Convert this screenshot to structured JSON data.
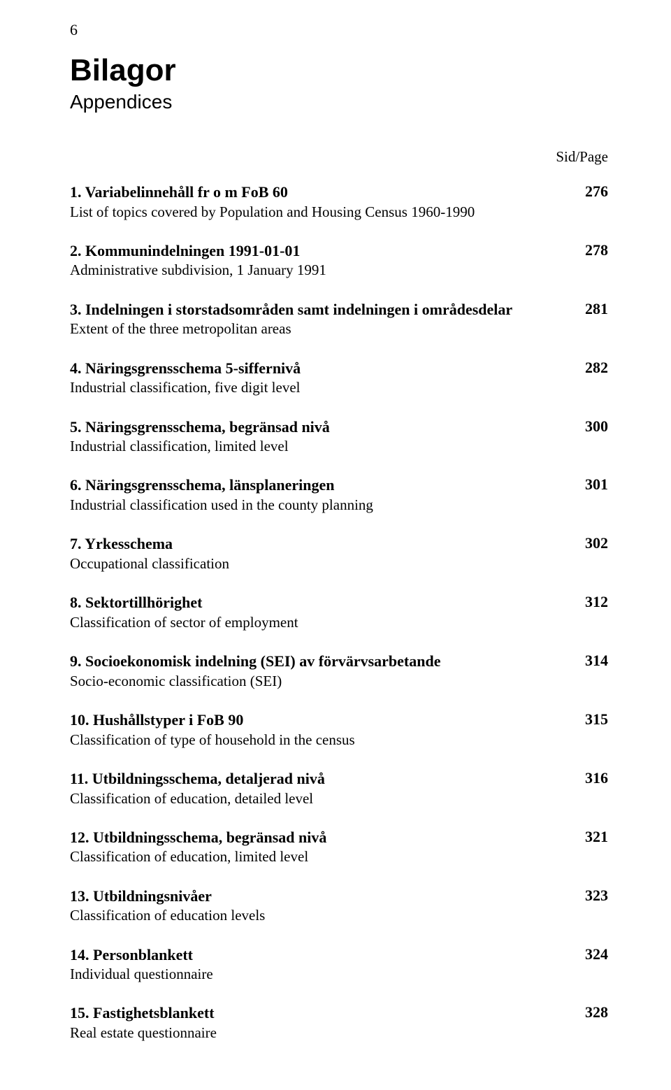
{
  "page_number": "6",
  "title": "Bilagor",
  "subtitle": "Appendices",
  "column_header": "Sid/Page",
  "entries": [
    {
      "title": "1. Variabelinnehåll fr o m FoB 60",
      "desc": "List of topics covered by Population and Housing Census 1960-1990",
      "page": "276"
    },
    {
      "title": "2. Kommunindelningen 1991-01-01",
      "desc": "Administrative subdivision, 1 January 1991",
      "page": "278"
    },
    {
      "title": "3. Indelningen i storstadsområden samt indelningen i områdesdelar",
      "desc": "Extent of the three metropolitan areas",
      "page": "281"
    },
    {
      "title": "4. Näringsgrensschema 5-siffernivå",
      "desc": "Industrial classification, five digit level",
      "page": "282"
    },
    {
      "title": "5. Näringsgrensschema, begränsad nivå",
      "desc": "Industrial classification, limited level",
      "page": "300"
    },
    {
      "title": "6. Näringsgrensschema, länsplaneringen",
      "desc": "Industrial classification used in the county planning",
      "page": "301"
    },
    {
      "title": "7. Yrkesschema",
      "desc": "Occupational classification",
      "page": "302"
    },
    {
      "title": "8. Sektortillhörighet",
      "desc": "Classification of sector of employment",
      "page": "312"
    },
    {
      "title": "9. Socioekonomisk indelning (SEI) av förvärvsarbetande",
      "desc": "Socio-economic classification (SEI)",
      "page": "314"
    },
    {
      "title": "10. Hushållstyper i FoB 90",
      "desc": "Classification of type of household in the census",
      "page": "315"
    },
    {
      "title": "11. Utbildningsschema, detaljerad nivå",
      "desc": "Classification of education, detailed level",
      "page": "316"
    },
    {
      "title": "12. Utbildningsschema, begränsad nivå",
      "desc": "Classification of education, limited level",
      "page": "321"
    },
    {
      "title": "13. Utbildningsnivåer",
      "desc": "Classification of education levels",
      "page": "323"
    },
    {
      "title": "14. Personblankett",
      "desc": "Individual questionnaire",
      "page": "324"
    },
    {
      "title": "15. Fastighetsblankett",
      "desc": "Real estate questionnaire",
      "page": "328"
    }
  ]
}
